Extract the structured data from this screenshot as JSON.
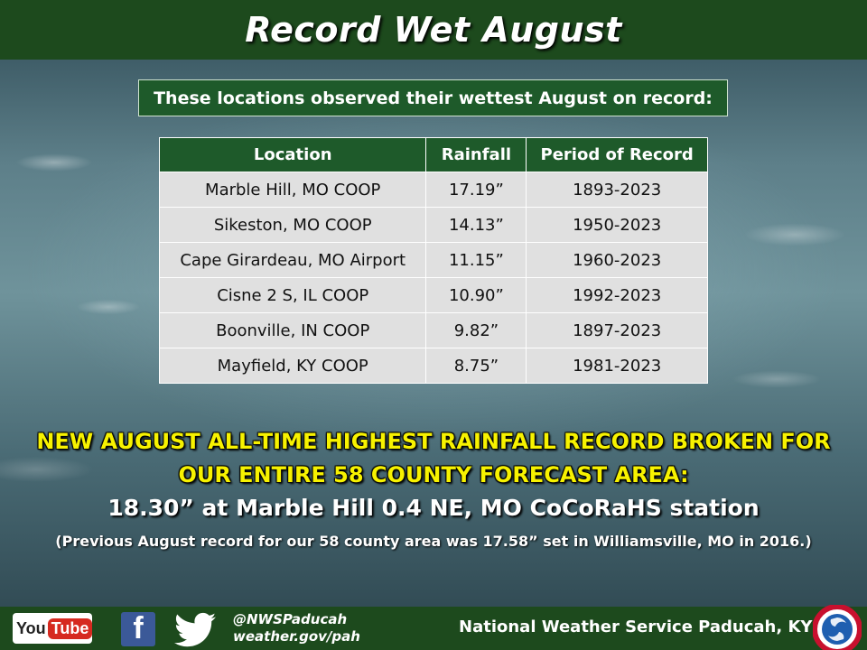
{
  "title": "Record Wet August",
  "subtitle": "These locations observed their wettest August on record:",
  "table": {
    "headers": [
      "Location",
      "Rainfall",
      "Period of Record"
    ],
    "rows": [
      [
        "Marble Hill, MO COOP",
        "17.19”",
        "1893-2023"
      ],
      [
        "Sikeston, MO COOP",
        "14.13”",
        "1950-2023"
      ],
      [
        "Cape Girardeau, MO Airport",
        "11.15”",
        "1960-2023"
      ],
      [
        "Cisne 2 S, IL COOP",
        "10.90”",
        "1992-2023"
      ],
      [
        "Boonville, IN COOP",
        "9.82”",
        "1897-2023"
      ],
      [
        "Mayfield, KY COOP",
        "8.75”",
        "1981-2023"
      ]
    ]
  },
  "headline": {
    "line1": "NEW AUGUST ALL-TIME HIGHEST RAINFALL RECORD BROKEN FOR",
    "line2": "OUR ENTIRE 58 COUNTY FORECAST AREA:"
  },
  "new_record": "18.30” at Marble Hill 0.4 NE, MO CoCoRaHS station",
  "previous_record": "(Previous August record for our 58 county area was 17.58”  set in Williamsville, MO in 2016.)",
  "footer": {
    "youtube_you": "You",
    "youtube_tube": "Tube",
    "facebook_letter": "f",
    "handle": "@NWSPaducah",
    "website": "weather.gov/pah",
    "office": "National Weather Service Paducah, KY"
  },
  "icons": {
    "youtube": "youtube-icon",
    "facebook": "facebook-icon",
    "twitter": "twitter-icon",
    "nws": "nws-logo-icon"
  },
  "colors": {
    "header_green": "#1d4a1d",
    "table_header_green": "#1e5a2a",
    "headline_yellow": "#f7f200",
    "table_cell": "#e0e0e0"
  }
}
